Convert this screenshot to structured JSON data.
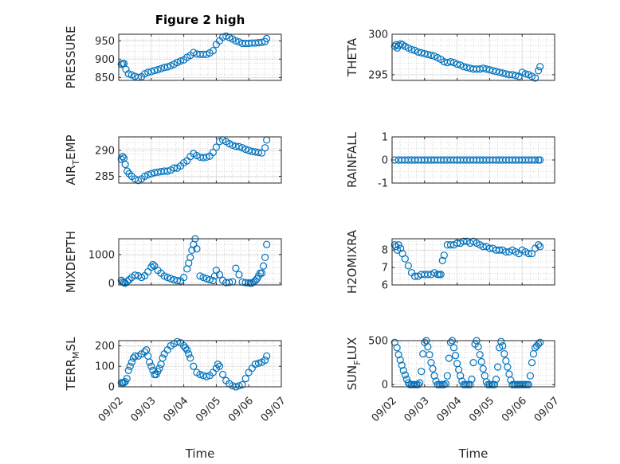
{
  "figure": {
    "title": "Figure 2 high",
    "xlabel": "Time",
    "x_tick_labels": [
      "09/02",
      "09/03",
      "09/04",
      "09/05",
      "09/06",
      "09/07"
    ],
    "marker_color": "#0072BD",
    "grid_color": "#c8c8c8",
    "axis_color": "#262626",
    "background": "#ffffff"
  },
  "chart_data": [
    {
      "type": "scatter",
      "ylabel": "PRESSURE",
      "ylim": [
        842,
        968
      ],
      "yticks": [
        850,
        900,
        950
      ],
      "xlim": [
        0,
        5
      ],
      "grid": "on (major and minor)",
      "x": [
        0.08,
        0.12,
        0.16,
        0.22,
        0.3,
        0.4,
        0.5,
        0.6,
        0.7,
        0.8,
        0.9,
        1.0,
        1.1,
        1.2,
        1.3,
        1.4,
        1.5,
        1.6,
        1.7,
        1.8,
        1.9,
        2.0,
        2.1,
        2.2,
        2.3,
        2.4,
        2.5,
        2.6,
        2.7,
        2.8,
        2.9,
        3.0,
        3.1,
        3.2,
        3.3,
        3.4,
        3.5,
        3.6,
        3.7,
        3.8,
        3.9,
        4.0,
        4.1,
        4.2,
        4.3,
        4.4,
        4.5,
        4.55
      ],
      "y": [
        886,
        888,
        888,
        872,
        860,
        857,
        853,
        850,
        852,
        860,
        864,
        866,
        869,
        871,
        874,
        877,
        879,
        882,
        886,
        891,
        895,
        898,
        905,
        910,
        918,
        914,
        913,
        913,
        913,
        917,
        923,
        940,
        950,
        960,
        963,
        959,
        955,
        950,
        947,
        943,
        943,
        943,
        944,
        944,
        945,
        946,
        948,
        956
      ]
    },
    {
      "type": "scatter",
      "ylabel": "THETA",
      "ylim": [
        294.3,
        300.0
      ],
      "yticks": [
        295,
        300
      ],
      "xlim": [
        0,
        5
      ],
      "grid": "on (major and minor)",
      "x": [
        0.08,
        0.12,
        0.16,
        0.2,
        0.26,
        0.32,
        0.4,
        0.5,
        0.6,
        0.7,
        0.8,
        0.9,
        1.0,
        1.1,
        1.2,
        1.3,
        1.4,
        1.5,
        1.6,
        1.7,
        1.8,
        1.9,
        2.0,
        2.1,
        2.2,
        2.3,
        2.4,
        2.5,
        2.6,
        2.7,
        2.8,
        2.9,
        3.0,
        3.1,
        3.2,
        3.3,
        3.4,
        3.5,
        3.6,
        3.7,
        3.8,
        3.9,
        4.0,
        4.1,
        4.2,
        4.3,
        4.4,
        4.5,
        4.55
      ],
      "y": [
        298.5,
        298.7,
        298.3,
        298.6,
        298.8,
        298.7,
        298.5,
        298.3,
        298.1,
        298.0,
        297.8,
        297.7,
        297.6,
        297.5,
        297.4,
        297.3,
        297.1,
        296.9,
        296.6,
        296.5,
        296.6,
        296.5,
        296.3,
        296.2,
        296.0,
        295.9,
        295.8,
        295.7,
        295.7,
        295.7,
        295.8,
        295.7,
        295.6,
        295.5,
        295.4,
        295.3,
        295.2,
        295.1,
        295.0,
        295.0,
        294.9,
        294.8,
        295.3,
        295.1,
        295.0,
        294.8,
        294.6,
        295.5,
        296.0
      ]
    },
    {
      "type": "scatter",
      "ylabel": "AIR_TEMP",
      "ylabel_display": {
        "base": "AIR",
        "subscript": "T",
        "rest": "EMP"
      },
      "ylim": [
        283.7,
        292.6
      ],
      "yticks": [
        285,
        290
      ],
      "xlim": [
        0,
        5
      ],
      "grid": "on (major and minor)",
      "x": [
        0.08,
        0.12,
        0.16,
        0.2,
        0.26,
        0.32,
        0.4,
        0.5,
        0.6,
        0.7,
        0.8,
        0.9,
        1.0,
        1.1,
        1.2,
        1.3,
        1.4,
        1.5,
        1.6,
        1.7,
        1.8,
        1.9,
        2.0,
        2.1,
        2.2,
        2.3,
        2.4,
        2.5,
        2.6,
        2.7,
        2.8,
        2.9,
        3.0,
        3.1,
        3.2,
        3.3,
        3.4,
        3.5,
        3.6,
        3.7,
        3.8,
        3.9,
        4.0,
        4.1,
        4.2,
        4.3,
        4.4,
        4.5,
        4.55
      ],
      "y": [
        288.3,
        288.8,
        288.5,
        287.3,
        286.0,
        285.5,
        285.0,
        284.5,
        284.2,
        284.5,
        285.0,
        285.3,
        285.5,
        285.7,
        285.8,
        285.9,
        286.0,
        286.0,
        286.2,
        286.6,
        286.6,
        287.0,
        287.6,
        288.0,
        288.8,
        289.4,
        289.0,
        288.7,
        288.6,
        288.7,
        288.9,
        289.6,
        290.6,
        291.7,
        292.0,
        291.7,
        291.3,
        291.0,
        290.8,
        290.7,
        290.5,
        290.2,
        290.0,
        289.8,
        289.7,
        289.6,
        289.5,
        290.5,
        292.0
      ]
    },
    {
      "type": "scatter",
      "ylabel": "RAINFALL",
      "ylim": [
        -1,
        1
      ],
      "yticks": [
        -1,
        0,
        1
      ],
      "xlim": [
        0,
        5
      ],
      "grid": "on (major and minor)",
      "x": [
        0.08,
        0.2,
        0.3,
        0.4,
        0.5,
        0.6,
        0.7,
        0.8,
        0.9,
        1.0,
        1.1,
        1.2,
        1.3,
        1.4,
        1.5,
        1.6,
        1.7,
        1.8,
        1.9,
        2.0,
        2.1,
        2.2,
        2.3,
        2.4,
        2.5,
        2.6,
        2.7,
        2.8,
        2.9,
        3.0,
        3.1,
        3.2,
        3.3,
        3.4,
        3.5,
        3.6,
        3.7,
        3.8,
        3.9,
        4.0,
        4.1,
        4.2,
        4.3,
        4.4,
        4.5,
        4.55
      ],
      "y": [
        0,
        0,
        0,
        0,
        0,
        0,
        0,
        0,
        0,
        0,
        0,
        0,
        0,
        0,
        0,
        0,
        0,
        0,
        0,
        0,
        0,
        0,
        0,
        0,
        0,
        0,
        0,
        0,
        0,
        0,
        0,
        0,
        0,
        0,
        0,
        0,
        0,
        0,
        0,
        0,
        0,
        0,
        0,
        0,
        0,
        0
      ]
    },
    {
      "type": "scatter",
      "ylabel": "MIXDEPTH",
      "ylim": [
        -60,
        1550
      ],
      "yticks": [
        0,
        1000
      ],
      "xlim": [
        0,
        5
      ],
      "grid": "on (major and minor)",
      "x": [
        0.08,
        0.12,
        0.16,
        0.2,
        0.26,
        0.32,
        0.4,
        0.5,
        0.6,
        0.7,
        0.8,
        0.9,
        1.0,
        1.05,
        1.1,
        1.2,
        1.3,
        1.4,
        1.5,
        1.6,
        1.7,
        1.8,
        1.9,
        2.0,
        2.1,
        2.15,
        2.2,
        2.25,
        2.3,
        2.35,
        2.4,
        2.5,
        2.6,
        2.7,
        2.8,
        2.9,
        2.95,
        3.0,
        3.1,
        3.2,
        3.3,
        3.4,
        3.5,
        3.6,
        3.7,
        3.8,
        3.9,
        4.0,
        4.05,
        4.1,
        4.15,
        4.2,
        4.25,
        4.3,
        4.35,
        4.4,
        4.45,
        4.5,
        4.55
      ],
      "y": [
        100,
        50,
        20,
        0,
        60,
        120,
        200,
        280,
        260,
        200,
        260,
        400,
        560,
        650,
        600,
        450,
        350,
        250,
        200,
        160,
        120,
        90,
        80,
        200,
        500,
        700,
        900,
        1150,
        1350,
        1550,
        1200,
        250,
        200,
        160,
        120,
        90,
        250,
        450,
        300,
        100,
        20,
        30,
        50,
        520,
        300,
        40,
        20,
        10,
        0,
        10,
        40,
        90,
        150,
        250,
        350,
        350,
        600,
        900,
        1350
      ]
    },
    {
      "type": "scatter",
      "ylabel": "H2OMIXRA",
      "ylim": [
        6.0,
        8.65
      ],
      "yticks": [
        6,
        7,
        8
      ],
      "xlim": [
        0,
        5
      ],
      "grid": "on (major and minor)",
      "x": [
        0.08,
        0.12,
        0.16,
        0.2,
        0.26,
        0.32,
        0.4,
        0.5,
        0.6,
        0.7,
        0.8,
        0.9,
        1.0,
        1.1,
        1.2,
        1.3,
        1.4,
        1.45,
        1.5,
        1.55,
        1.6,
        1.7,
        1.8,
        1.9,
        2.0,
        2.1,
        2.2,
        2.3,
        2.4,
        2.5,
        2.6,
        2.7,
        2.8,
        2.9,
        3.0,
        3.1,
        3.2,
        3.3,
        3.4,
        3.5,
        3.6,
        3.7,
        3.8,
        3.9,
        4.0,
        4.1,
        4.2,
        4.3,
        4.4,
        4.5,
        4.55
      ],
      "y": [
        8.3,
        8.2,
        8.0,
        8.3,
        8.1,
        7.8,
        7.5,
        7.1,
        6.7,
        6.5,
        6.5,
        6.6,
        6.6,
        6.6,
        6.6,
        6.7,
        6.6,
        6.6,
        6.6,
        7.4,
        7.7,
        8.3,
        8.3,
        8.3,
        8.4,
        8.4,
        8.5,
        8.5,
        8.4,
        8.5,
        8.4,
        8.3,
        8.2,
        8.2,
        8.1,
        8.1,
        8.0,
        8.0,
        8.0,
        7.9,
        7.9,
        8.0,
        7.9,
        7.8,
        8.0,
        7.9,
        7.8,
        7.8,
        8.1,
        8.3,
        8.2
      ]
    },
    {
      "type": "scatter",
      "ylabel": "TERR_MSL",
      "ylabel_display": {
        "base": "TERR",
        "subscript": "M",
        "rest": "SL"
      },
      "ylim": [
        0,
        225
      ],
      "yticks": [
        0,
        100,
        200
      ],
      "xlim": [
        0,
        5
      ],
      "grid": "on (major and minor)",
      "x": [
        0.08,
        0.12,
        0.16,
        0.2,
        0.25,
        0.3,
        0.35,
        0.4,
        0.45,
        0.5,
        0.6,
        0.7,
        0.8,
        0.85,
        0.9,
        0.95,
        1.0,
        1.05,
        1.1,
        1.15,
        1.2,
        1.25,
        1.3,
        1.35,
        1.4,
        1.5,
        1.6,
        1.7,
        1.8,
        1.9,
        2.0,
        2.05,
        2.1,
        2.15,
        2.2,
        2.3,
        2.4,
        2.5,
        2.6,
        2.7,
        2.8,
        2.9,
        3.0,
        3.05,
        3.1,
        3.2,
        3.3,
        3.4,
        3.5,
        3.6,
        3.7,
        3.8,
        3.9,
        4.0,
        4.1,
        4.2,
        4.3,
        4.4,
        4.5,
        4.55
      ],
      "y": [
        20,
        20,
        20,
        25,
        40,
        80,
        100,
        120,
        140,
        150,
        150,
        160,
        170,
        180,
        150,
        120,
        100,
        80,
        60,
        60,
        75,
        90,
        110,
        140,
        160,
        180,
        200,
        210,
        220,
        215,
        200,
        190,
        180,
        160,
        140,
        100,
        70,
        60,
        55,
        50,
        55,
        70,
        90,
        110,
        100,
        60,
        30,
        15,
        5,
        0,
        5,
        10,
        40,
        70,
        90,
        110,
        115,
        120,
        130,
        150
      ]
    },
    {
      "type": "scatter",
      "ylabel": "SUN_FLUX",
      "ylabel_display": {
        "base": "SUN",
        "subscript": "F",
        "rest": "LUX"
      },
      "ylim": [
        -25,
        500
      ],
      "yticks": [
        0,
        500
      ],
      "xlim": [
        0,
        5
      ],
      "grid": "on (major and minor)",
      "x": [
        0.08,
        0.15,
        0.2,
        0.25,
        0.3,
        0.35,
        0.4,
        0.45,
        0.5,
        0.55,
        0.6,
        0.65,
        0.7,
        0.75,
        0.8,
        0.85,
        0.9,
        0.95,
        1.0,
        1.05,
        1.1,
        1.15,
        1.2,
        1.25,
        1.3,
        1.35,
        1.4,
        1.45,
        1.5,
        1.55,
        1.6,
        1.65,
        1.7,
        1.75,
        1.8,
        1.85,
        1.9,
        1.95,
        2.0,
        2.05,
        2.1,
        2.15,
        2.2,
        2.25,
        2.3,
        2.35,
        2.4,
        2.45,
        2.5,
        2.55,
        2.6,
        2.65,
        2.7,
        2.75,
        2.8,
        2.85,
        2.9,
        2.95,
        3.0,
        3.05,
        3.1,
        3.15,
        3.2,
        3.25,
        3.3,
        3.35,
        3.4,
        3.45,
        3.5,
        3.55,
        3.6,
        3.65,
        3.7,
        3.75,
        3.8,
        3.85,
        3.9,
        3.95,
        4.0,
        4.05,
        4.1,
        4.15,
        4.2,
        4.25,
        4.3,
        4.35,
        4.4,
        4.45,
        4.5,
        4.55
      ],
      "y": [
        480,
        420,
        340,
        280,
        220,
        160,
        110,
        60,
        20,
        0,
        0,
        0,
        0,
        0,
        0,
        20,
        150,
        350,
        480,
        500,
        430,
        340,
        250,
        180,
        100,
        40,
        0,
        0,
        0,
        0,
        0,
        10,
        100,
        300,
        480,
        500,
        420,
        330,
        240,
        170,
        100,
        40,
        0,
        0,
        0,
        0,
        0,
        60,
        250,
        460,
        500,
        430,
        340,
        260,
        180,
        100,
        30,
        0,
        0,
        0,
        0,
        0,
        60,
        200,
        420,
        490,
        440,
        350,
        270,
        200,
        120,
        50,
        0,
        0,
        0,
        0,
        0,
        0,
        0,
        0,
        0,
        0,
        0,
        100,
        250,
        350,
        420,
        440,
        460,
        480
      ]
    }
  ]
}
